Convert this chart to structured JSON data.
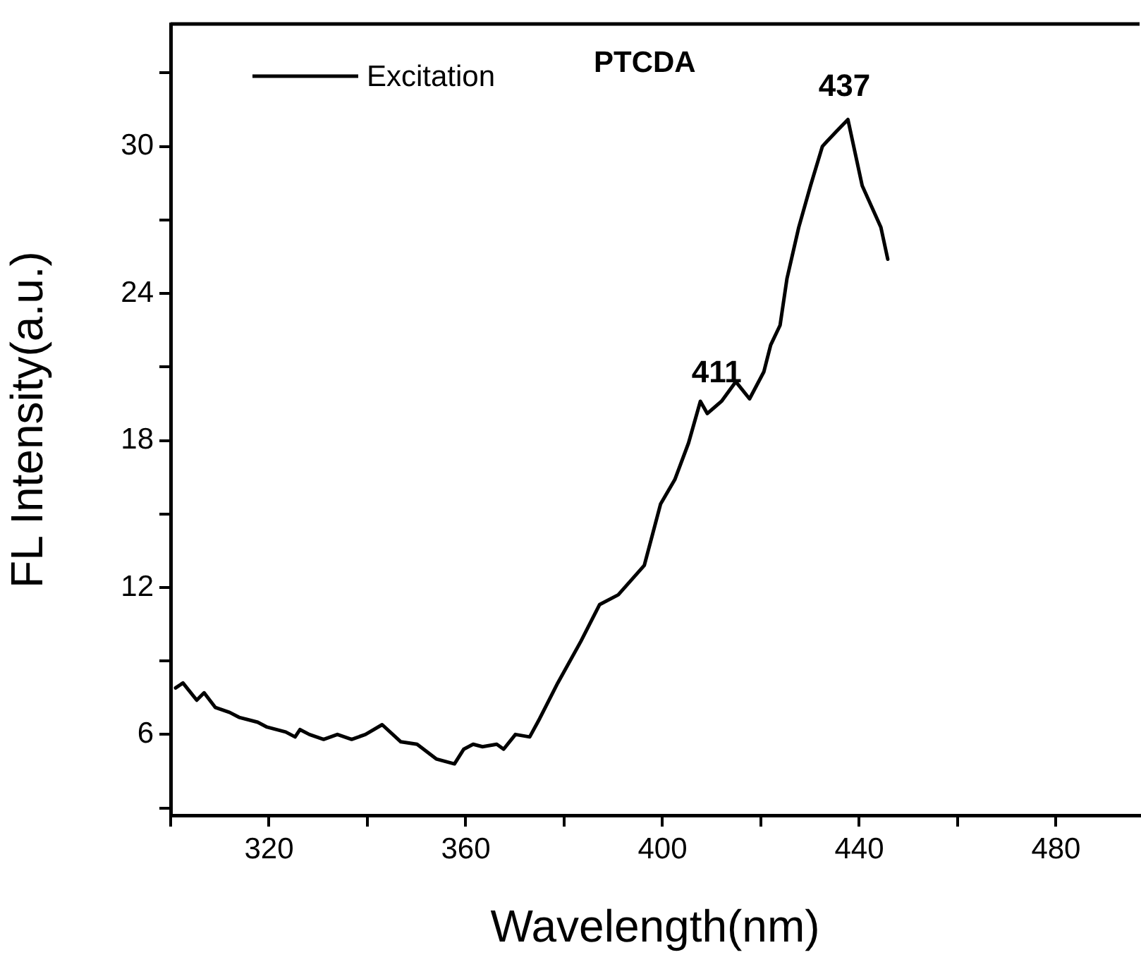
{
  "chart_data": {
    "type": "line",
    "title": "PTCDA",
    "xlabel": "Wavelength(nm)",
    "ylabel": "FL Intensity(a.u.)",
    "xlim": [
      300,
      497
    ],
    "xticks": [
      {
        "value": 300,
        "label": null
      },
      320,
      {
        "value": 340,
        "label": null
      },
      360,
      {
        "value": 380,
        "label": null
      },
      400,
      {
        "value": 420,
        "label": null
      },
      440,
      {
        "value": 460,
        "label": null
      },
      480
    ],
    "ylim": [
      2.7,
      35
    ],
    "yticks": [
      {
        "value": 3,
        "label": null
      },
      6,
      {
        "value": 9,
        "label": null
      },
      12,
      {
        "value": 15,
        "label": null
      },
      18,
      {
        "value": 21,
        "label": null
      },
      24,
      {
        "value": 27,
        "label": null
      },
      30,
      {
        "value": 33,
        "label": null
      }
    ],
    "grid": false,
    "legend": "top left",
    "marker": "none",
    "line_style": "solid",
    "annotations": [
      {
        "text": "411",
        "x": 411,
        "y": 19.4
      },
      {
        "text": "437",
        "x": 437,
        "y": 31.1
      }
    ],
    "series": [
      {
        "name": "Excitation",
        "color": "#000000",
        "x": [
          301,
          302.5,
          305.3,
          306.8,
          309.1,
          312,
          313.9,
          317.7,
          319.6,
          323.4,
          325.3,
          326.3,
          328.2,
          331.1,
          333.9,
          336.8,
          339.6,
          343,
          346.8,
          350.1,
          354,
          357.7,
          359.6,
          361.5,
          363.4,
          366.3,
          367.7,
          370.1,
          373,
          374.9,
          378.7,
          383.4,
          387.2,
          391,
          396.3,
          399.6,
          402.5,
          405.3,
          407.7,
          409.1,
          412,
          414.9,
          417.7,
          420.6,
          422,
          423.9,
          425.3,
          427.7,
          430.1,
          432.5,
          433.4,
          435.3,
          437.7,
          440.6,
          444.4,
          445.8
        ],
        "values": [
          7.9,
          8.1,
          7.4,
          7.7,
          7.1,
          6.9,
          6.7,
          6.5,
          6.3,
          6.1,
          5.9,
          6.2,
          6,
          5.8,
          6,
          5.8,
          6,
          6.4,
          5.7,
          5.6,
          5,
          4.8,
          5.4,
          5.6,
          5.5,
          5.6,
          5.4,
          6,
          5.9,
          6.6,
          8.1,
          9.8,
          11.3,
          11.7,
          12.9,
          15.4,
          16.4,
          17.9,
          19.6,
          19.1,
          19.6,
          20.4,
          19.7,
          20.8,
          21.9,
          22.7,
          24.6,
          26.7,
          28.4,
          30,
          30.2,
          30.6,
          31.1,
          28.4,
          26.7,
          25.4
        ]
      }
    ]
  }
}
